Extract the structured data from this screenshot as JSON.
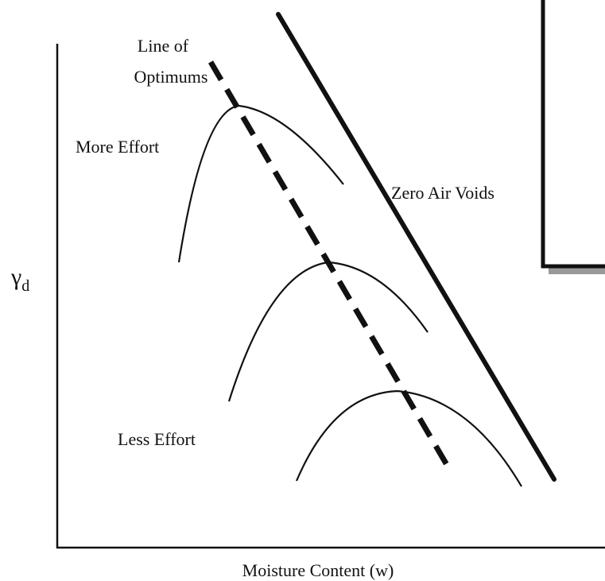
{
  "labels": {
    "line_of_optimums": [
      "Line of",
      "Optimums"
    ],
    "more_effort": "More Effort",
    "zero_air_voids": "Zero Air Voids",
    "less_effort": "Less Effort"
  },
  "axes": {
    "y_label": {
      "symbol": "γ",
      "subscript": "d"
    },
    "x_label": "Moisture Content (w)"
  }
}
